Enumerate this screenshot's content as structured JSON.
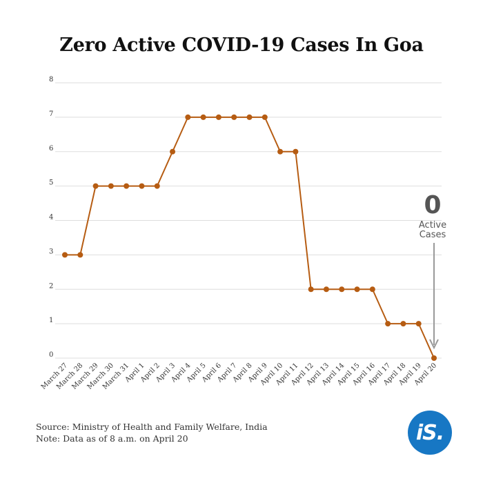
{
  "chart_data": {
    "type": "line",
    "title": "Zero Active COVID-19 Cases In Goa",
    "xlabel": "",
    "ylabel": "",
    "ylim": [
      0,
      8
    ],
    "yticks": [
      "0",
      "1",
      "2",
      "3",
      "4",
      "5",
      "6",
      "7",
      "8"
    ],
    "grid": true,
    "categories": [
      "March 27",
      "March 28",
      "March 29",
      "March 30",
      "March 31",
      "April 1",
      "April 2",
      "April 3",
      "April 4",
      "April 5",
      "April 6",
      "April 7",
      "April 8",
      "April 9",
      "April 10",
      "April 11",
      "April 12",
      "April 13",
      "April 14",
      "April 15",
      "April 16",
      "April 17",
      "April 18",
      "April 19",
      "April 20"
    ],
    "values": [
      3,
      3,
      5,
      5,
      5,
      5,
      5,
      6,
      7,
      7,
      7,
      7,
      7,
      7,
      6,
      6,
      2,
      2,
      2,
      2,
      2,
      1,
      1,
      1,
      0
    ],
    "line_color": "#b65c12",
    "annotation": {
      "value": "0",
      "line1": "Active",
      "line2": "Cases",
      "color": "#555555",
      "arrow_color": "#999999"
    }
  },
  "footer": {
    "source": "Source: Ministry of Health and Family Welfare, India",
    "note": "Note: Data as of 8 a.m. on April 20"
  },
  "logo": {
    "text": "iS.",
    "color": "#1777c4"
  }
}
